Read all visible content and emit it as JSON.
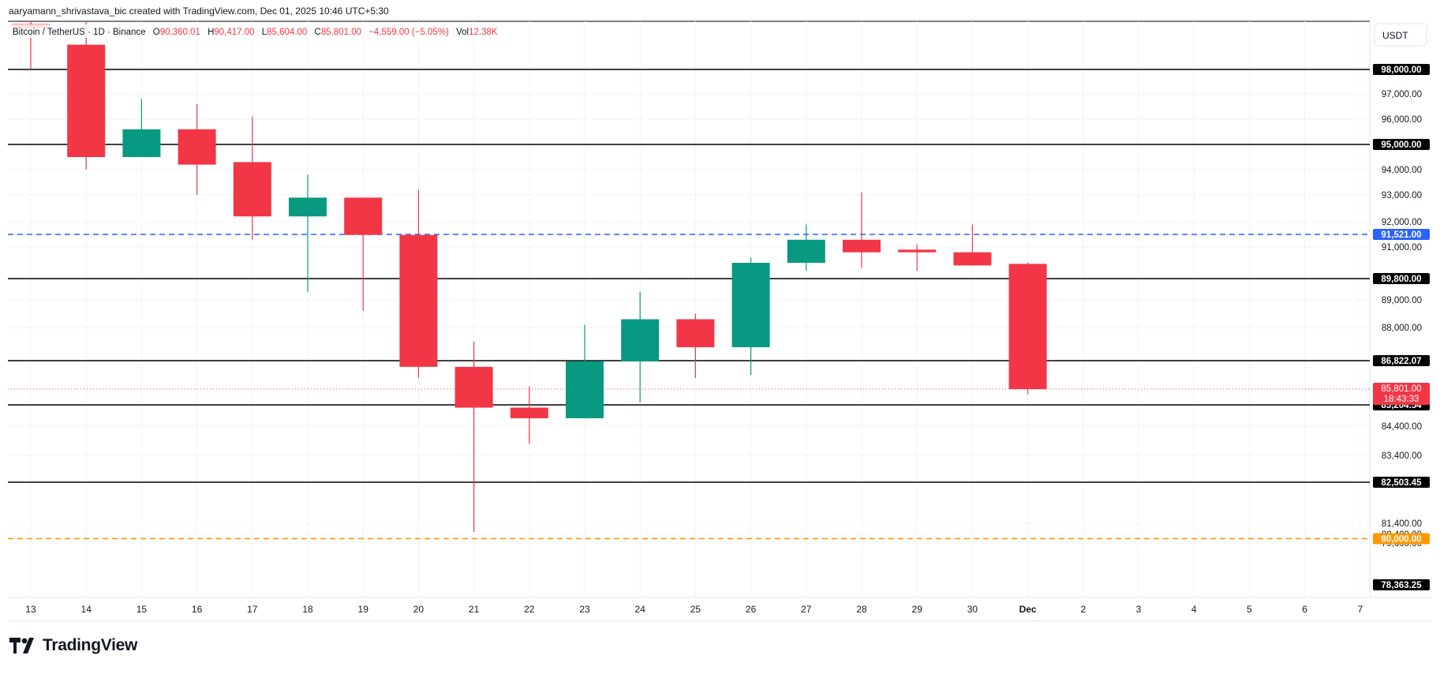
{
  "header": {
    "created_note": "aaryamann_shrivastava_bic created with TradingView.com, Dec 01, 2025 10:46 UTC+5:30"
  },
  "legend": {
    "symbol": "Bitcoin / TetherUS · 1D · Binance",
    "o_label": "O",
    "o_value": "90,360.01",
    "h_label": "H",
    "h_value": "90,417.00",
    "l_label": "L",
    "l_value": "85,604.00",
    "c_label": "C",
    "c_value": "85,801.00",
    "change": "−4,559.00 (−5.05%)",
    "vol_label": "Vol",
    "vol_value": "12.38K"
  },
  "currency_button": "USDT",
  "brand": {
    "name": "TradingView"
  },
  "colors": {
    "up": "#089981",
    "down": "#f23645",
    "level": "#000000",
    "dashed_blue": "#2962ff",
    "dashed_orange": "#ff9800",
    "grid": "#f0f3fa"
  },
  "chart_data": {
    "type": "candlestick",
    "x_tick_labels": [
      "13",
      "14",
      "15",
      "16",
      "17",
      "18",
      "19",
      "20",
      "21",
      "22",
      "23",
      "24",
      "25",
      "26",
      "27",
      "28",
      "29",
      "30",
      "Dec",
      "2",
      "3",
      "4",
      "5",
      "6",
      "7"
    ],
    "candles": [
      {
        "date": "13",
        "open": 101300,
        "high": 101500,
        "low": 98000,
        "close": 101000
      },
      {
        "date": "14",
        "open": 99800,
        "high": 101500,
        "low": 94000,
        "close": 94500
      },
      {
        "date": "15",
        "open": 94500,
        "high": 96800,
        "low": 94500,
        "close": 95600
      },
      {
        "date": "16",
        "open": 95600,
        "high": 96600,
        "low": 93000,
        "close": 94200
      },
      {
        "date": "17",
        "open": 94300,
        "high": 96100,
        "low": 91300,
        "close": 92200
      },
      {
        "date": "18",
        "open": 92200,
        "high": 93800,
        "low": 89300,
        "close": 92900
      },
      {
        "date": "19",
        "open": 92900,
        "high": 92900,
        "low": 88600,
        "close": 91500
      },
      {
        "date": "20",
        "open": 91500,
        "high": 93200,
        "low": 86200,
        "close": 86600
      },
      {
        "date": "21",
        "open": 86600,
        "high": 87500,
        "low": 80600,
        "close": 85100
      },
      {
        "date": "22",
        "open": 85100,
        "high": 85900,
        "low": 83800,
        "close": 84700
      },
      {
        "date": "23",
        "open": 84700,
        "high": 88100,
        "low": 84700,
        "close": 86800
      },
      {
        "date": "24",
        "open": 86800,
        "high": 89300,
        "low": 85300,
        "close": 88300
      },
      {
        "date": "25",
        "open": 88300,
        "high": 88500,
        "low": 86200,
        "close": 87300
      },
      {
        "date": "26",
        "open": 87300,
        "high": 90600,
        "low": 86300,
        "close": 90400
      },
      {
        "date": "27",
        "open": 90400,
        "high": 91900,
        "low": 90100,
        "close": 91300
      },
      {
        "date": "28",
        "open": 91300,
        "high": 93100,
        "low": 90200,
        "close": 90800
      },
      {
        "date": "29",
        "open": 90900,
        "high": 91100,
        "low": 90100,
        "close": 90800
      },
      {
        "date": "30",
        "open": 90800,
        "high": 91900,
        "low": 90300,
        "close": 90300
      },
      {
        "date": "Dec",
        "open": 90360.01,
        "high": 90417,
        "low": 85604,
        "close": 85801
      }
    ],
    "horizontal_levels": [
      {
        "value": 98000,
        "label": "98,000.00",
        "style": "solid",
        "color": "#000000"
      },
      {
        "value": 95000,
        "label": "95,000.00",
        "style": "solid",
        "color": "#000000"
      },
      {
        "value": 91521,
        "label": "91,521.00",
        "style": "dashed",
        "color": "#2962ff"
      },
      {
        "value": 89800,
        "label": "89,800.00",
        "style": "solid",
        "color": "#000000"
      },
      {
        "value": 86822.07,
        "label": "86,822.07",
        "style": "solid",
        "color": "#000000"
      },
      {
        "value": 85204.54,
        "label": "85,204.54",
        "style": "solid",
        "color": "#000000"
      },
      {
        "value": 82503.45,
        "label": "82,503.45",
        "style": "solid",
        "color": "#000000"
      },
      {
        "value": 80000,
        "label": "80,000.00",
        "style": "dashed",
        "color": "#ff9800"
      }
    ],
    "last_price": {
      "value": 85801,
      "label": "85,801.00",
      "countdown": "18:43:33",
      "color": "#f23645"
    },
    "bottom_price_label": {
      "label": "78,363.25",
      "color": "#000000"
    },
    "y_tick_labels": [
      {
        "value": 97000,
        "label": "97,000.00"
      },
      {
        "value": 96000,
        "label": "96,000.00"
      },
      {
        "value": 94000,
        "label": "94,000.00"
      },
      {
        "value": 93000,
        "label": "93,000.00"
      },
      {
        "value": 92000,
        "label": "92,000.00"
      },
      {
        "value": 91000,
        "label": "91,000.00"
      },
      {
        "value": 89000,
        "label": "89,000.00"
      },
      {
        "value": 88000,
        "label": "88,000.00"
      },
      {
        "value": 84400,
        "label": "84,400.00"
      },
      {
        "value": 83400,
        "label": "83,400.00"
      },
      {
        "value": 81400,
        "label": "81,400.00"
      },
      {
        "value": 80400,
        "label": "80,400.00"
      },
      {
        "value": 79600,
        "label": "79,600.00"
      }
    ],
    "y_scale": "nonlinear (price axis)",
    "grid": true
  }
}
